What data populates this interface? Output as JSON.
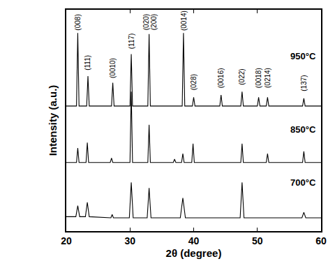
{
  "chart_data": {
    "type": "line",
    "x_label": "2θ (degree)",
    "y_label": "Intensity (a.u.)",
    "xlim": [
      20,
      60
    ],
    "xticks": [
      20,
      30,
      40,
      50,
      60
    ],
    "ylim": [
      0,
      100
    ],
    "tick_labels": "x",
    "grid": false,
    "color": "#000000",
    "series": [
      {
        "name": "950°C",
        "x": [
          20,
          21.6,
          21.8,
          22.0,
          23.2,
          23.4,
          23.6,
          27.1,
          27.3,
          27.5,
          30.0,
          30.2,
          30.4,
          32.8,
          33.0,
          33.2,
          38.2,
          38.4,
          38.6,
          39.8,
          40.0,
          40.2,
          44.1,
          44.3,
          44.5,
          47.4,
          47.6,
          47.8,
          50.0,
          50.2,
          50.4,
          51.4,
          51.6,
          51.8,
          57.1,
          57.3,
          57.5,
          60
        ],
        "values": [
          56.5,
          56.5,
          89.5,
          56.5,
          56.5,
          70,
          56.5,
          56.5,
          67,
          56.5,
          56.5,
          80,
          56.5,
          56.5,
          89,
          56.5,
          56.5,
          89.5,
          56.5,
          56.5,
          60.5,
          56.5,
          56.5,
          61.5,
          56.5,
          56.5,
          63,
          56.5,
          56.5,
          60.5,
          56.5,
          56.5,
          60.5,
          56.5,
          56.5,
          60,
          56.5,
          56.5
        ]
      },
      {
        "name": "850°C",
        "x": [
          20,
          21.6,
          21.8,
          22.0,
          23.1,
          23.3,
          23.5,
          26.9,
          27.1,
          27.3,
          30.0,
          30.2,
          30.4,
          32.8,
          33.0,
          33.2,
          36.8,
          37.0,
          37.2,
          38.1,
          38.3,
          38.5,
          39.7,
          39.9,
          40.1,
          47.4,
          47.6,
          47.8,
          51.4,
          51.6,
          51.8,
          57.1,
          57.3,
          57.5,
          60
        ],
        "values": [
          31,
          31,
          37.5,
          31,
          31,
          40,
          31,
          31,
          33,
          31,
          31,
          63,
          31,
          31,
          48,
          31,
          31,
          32.5,
          31,
          31,
          35,
          31,
          31,
          39.5,
          31,
          31,
          39.5,
          31,
          31,
          35,
          31,
          31,
          36,
          31,
          31
        ]
      },
      {
        "name": "700°C",
        "x": [
          20,
          21.5,
          21.8,
          22.1,
          23.0,
          23.3,
          23.6,
          27.0,
          27.2,
          27.4,
          29.9,
          30.2,
          30.5,
          32.7,
          33.0,
          33.3,
          37.9,
          38.3,
          38.7,
          47.3,
          47.6,
          47.9,
          57.0,
          57.3,
          57.6,
          60
        ],
        "values": [
          6.5,
          6.5,
          11.5,
          6.5,
          6.5,
          13,
          6.5,
          6,
          7.5,
          6,
          6,
          22,
          6,
          6,
          19.5,
          6,
          6,
          15,
          6,
          6,
          22,
          6,
          6,
          8.5,
          6,
          6
        ]
      }
    ],
    "peak_labels": [
      {
        "text": "(008)",
        "x": 21.8,
        "y": 90
      },
      {
        "text": "(111)",
        "x": 23.4,
        "y": 72
      },
      {
        "text": "(0010)",
        "x": 27.3,
        "y": 68.5
      },
      {
        "text": "(117)",
        "x": 30.2,
        "y": 81.5
      },
      {
        "text": "(020)",
        "x": 32.5,
        "y": 90
      },
      {
        "text": "(200)",
        "x": 33.7,
        "y": 90
      },
      {
        "text": "(0014)",
        "x": 38.4,
        "y": 90
      },
      {
        "text": "(028)",
        "x": 40.0,
        "y": 63
      },
      {
        "text": "(0016)",
        "x": 44.3,
        "y": 64
      },
      {
        "text": "(022)",
        "x": 47.6,
        "y": 65.5
      },
      {
        "text": "(0018)",
        "x": 50.2,
        "y": 64
      },
      {
        "text": "(0214)",
        "x": 51.6,
        "y": 64
      },
      {
        "text": "(137)",
        "x": 57.3,
        "y": 62.5
      }
    ],
    "annotations": [
      {
        "text": "950°C",
        "x": 59.5,
        "y": 79
      },
      {
        "text": "850°C",
        "x": 59.5,
        "y": 46
      },
      {
        "text": "700°C",
        "x": 59.5,
        "y": 22
      }
    ]
  }
}
